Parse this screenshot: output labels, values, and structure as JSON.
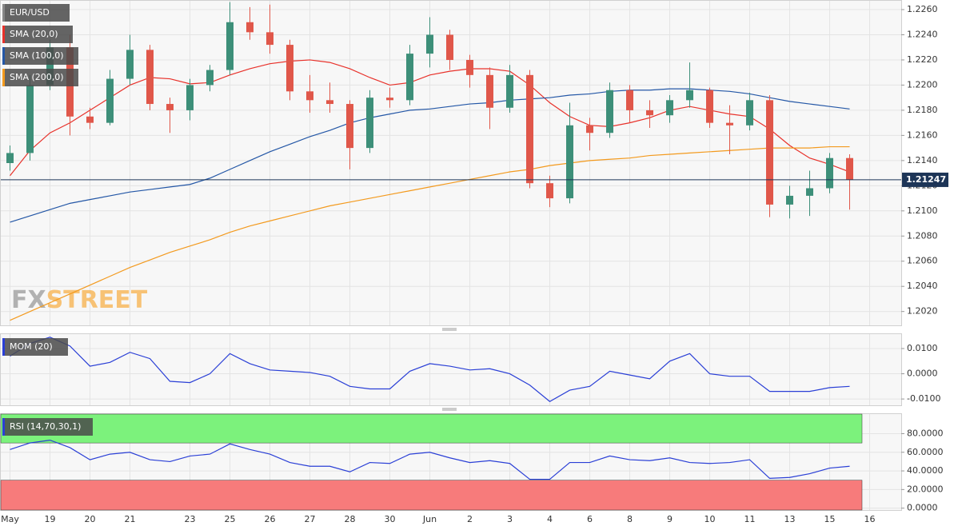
{
  "chart_data": [
    {
      "type": "candlestick",
      "symbol": "EUR/USD",
      "up_color": "#3d8f79",
      "down_color": "#e0574a",
      "grid": true,
      "last_price": 1.21247,
      "last_price_color": "#1d3557",
      "categories": [
        "May",
        null,
        "19",
        null,
        "20",
        null,
        "21",
        null,
        null,
        "23",
        null,
        "25",
        null,
        "26",
        null,
        "27",
        null,
        "28",
        null,
        "30",
        null,
        "Jun",
        null,
        "2",
        null,
        "3",
        null,
        "4",
        null,
        "6",
        null,
        "8",
        null,
        "9",
        null,
        "10",
        null,
        "11",
        null,
        "13",
        null,
        "15",
        null,
        "16"
      ],
      "open": [
        1.2138,
        1.2146,
        1.22,
        1.223,
        1.2175,
        1.217,
        1.2205,
        1.2228,
        1.2185,
        1.218,
        1.22,
        1.2212,
        1.225,
        1.2242,
        1.2232,
        1.2195,
        1.2188,
        1.2185,
        1.215,
        1.219,
        1.2188,
        1.2225,
        1.224,
        1.222,
        1.2208,
        1.2182,
        1.2208,
        1.2122,
        1.211,
        1.2168,
        1.2162,
        1.2196,
        1.218,
        1.2176,
        1.2188,
        1.2196,
        1.217,
        1.2168,
        1.2188,
        1.2105,
        1.2112,
        1.2118,
        1.2142,
        null
      ],
      "high": [
        1.2152,
        1.2208,
        1.2236,
        1.224,
        1.2182,
        1.2212,
        1.224,
        1.2232,
        1.219,
        1.2205,
        1.2216,
        1.2266,
        1.2262,
        1.2264,
        1.2236,
        1.2208,
        1.2202,
        1.2188,
        1.2196,
        1.2198,
        1.2232,
        1.2254,
        1.2244,
        1.2224,
        1.2214,
        1.2216,
        1.2212,
        1.2128,
        1.2186,
        1.2174,
        1.2202,
        1.22,
        1.2188,
        1.2192,
        1.2218,
        1.2198,
        1.2184,
        1.2194,
        1.2192,
        1.212,
        1.2132,
        1.2146,
        1.2145,
        null
      ],
      "low": [
        1.2132,
        1.214,
        1.2196,
        1.216,
        1.2165,
        1.2168,
        1.22,
        1.218,
        1.2162,
        1.2172,
        1.2195,
        1.2208,
        1.2236,
        1.2225,
        1.2188,
        1.2178,
        1.2178,
        1.2133,
        1.2146,
        1.2182,
        1.2184,
        1.2214,
        1.2212,
        1.2198,
        1.2165,
        1.2178,
        1.2118,
        1.2103,
        1.2106,
        1.2148,
        1.2158,
        1.217,
        1.2166,
        1.217,
        1.2182,
        1.2166,
        1.2145,
        1.2164,
        1.2095,
        1.2094,
        1.2096,
        1.2114,
        1.2101,
        null
      ],
      "close": [
        1.2146,
        1.22,
        1.223,
        1.2175,
        1.217,
        1.2205,
        1.2228,
        1.2185,
        1.218,
        1.22,
        1.2212,
        1.225,
        1.2242,
        1.2232,
        1.2195,
        1.2188,
        1.2185,
        1.215,
        1.219,
        1.2188,
        1.2225,
        1.224,
        1.222,
        1.2208,
        1.2182,
        1.2208,
        1.2122,
        1.211,
        1.2168,
        1.2162,
        1.2196,
        1.218,
        1.2176,
        1.2188,
        1.2196,
        1.217,
        1.2168,
        1.2188,
        1.2105,
        1.2112,
        1.2118,
        1.2142,
        1.21247,
        null
      ],
      "series": [
        {
          "name": "SMA (20,0)",
          "color": "#e8312a",
          "values": [
            1.2128,
            1.2148,
            1.2162,
            1.217,
            1.218,
            1.219,
            1.22,
            1.2206,
            1.2205,
            1.2201,
            1.2202,
            1.2208,
            1.2213,
            1.2217,
            1.2219,
            1.222,
            1.2218,
            1.2213,
            1.2206,
            1.22,
            1.2202,
            1.2208,
            1.2211,
            1.2213,
            1.2213,
            1.2211,
            1.22,
            1.2186,
            1.2175,
            1.2168,
            1.2167,
            1.217,
            1.2174,
            1.218,
            1.2183,
            1.218,
            1.2177,
            1.2175,
            1.2165,
            1.2152,
            1.2142,
            1.2137,
            1.2131,
            null
          ]
        },
        {
          "name": "SMA (100,0)",
          "color": "#2457a6",
          "values": [
            1.2091,
            1.2096,
            1.2101,
            1.2106,
            1.2109,
            1.2112,
            1.2115,
            1.2117,
            1.2119,
            1.2121,
            1.2126,
            1.2133,
            1.214,
            1.2147,
            1.2153,
            1.2159,
            1.2164,
            1.217,
            1.2174,
            1.2177,
            1.218,
            1.2181,
            1.2183,
            1.2185,
            1.2186,
            1.2188,
            1.2189,
            1.219,
            1.2192,
            1.2193,
            1.2195,
            1.2196,
            1.2196,
            1.2197,
            1.2197,
            1.2196,
            1.2195,
            1.2193,
            1.219,
            1.2187,
            1.2185,
            1.2183,
            1.2181,
            null
          ]
        },
        {
          "name": "SMA (200,0)",
          "color": "#f39a1e",
          "values": [
            1.2013,
            1.202,
            1.2027,
            1.2034,
            1.2041,
            1.2048,
            1.2055,
            1.2061,
            1.2067,
            1.2072,
            1.2077,
            1.2083,
            1.2088,
            1.2092,
            1.2096,
            1.21,
            1.2104,
            1.2107,
            1.211,
            1.2113,
            1.2116,
            1.2119,
            1.2122,
            1.2125,
            1.2128,
            1.2131,
            1.2133,
            1.2136,
            1.2138,
            1.214,
            1.2141,
            1.2142,
            1.2144,
            1.2145,
            1.2146,
            1.2147,
            1.2148,
            1.2149,
            1.215,
            1.215,
            1.215,
            1.2151,
            1.2151,
            null
          ]
        }
      ],
      "ylim": [
        1.2009,
        1.2267
      ],
      "yticks": [
        {
          "value": 1.202,
          "label": "1.2020"
        },
        {
          "value": 1.204,
          "label": "1.2040"
        },
        {
          "value": 1.206,
          "label": "1.2060"
        },
        {
          "value": 1.208,
          "label": "1.2080"
        },
        {
          "value": 1.21,
          "label": "1.2100"
        },
        {
          "value": 1.212,
          "label": "1.2120"
        },
        {
          "value": 1.214,
          "label": "1.2140"
        },
        {
          "value": 1.216,
          "label": "1.2160"
        },
        {
          "value": 1.218,
          "label": "1.2180"
        },
        {
          "value": 1.22,
          "label": "1.2200"
        },
        {
          "value": 1.222,
          "label": "1.2220"
        },
        {
          "value": 1.224,
          "label": "1.2240"
        },
        {
          "value": 1.226,
          "label": "1.2260"
        }
      ],
      "watermark": [
        "FX",
        "STREET"
      ]
    },
    {
      "type": "line",
      "label": "MOM (20)",
      "color": "#2a3fd6",
      "grid": true,
      "values": [
        0.007,
        0.012,
        0.0145,
        0.011,
        0.003,
        0.0045,
        0.0085,
        0.006,
        -0.003,
        -0.0035,
        0.0,
        0.008,
        0.004,
        0.0015,
        0.001,
        0.0005,
        -0.001,
        -0.005,
        -0.006,
        -0.006,
        0.001,
        0.004,
        0.003,
        0.0015,
        0.002,
        0.0,
        -0.0045,
        -0.011,
        -0.0065,
        -0.005,
        0.001,
        -0.0005,
        -0.002,
        0.005,
        0.008,
        0.0,
        -0.001,
        -0.001,
        -0.007,
        -0.007,
        -0.007,
        -0.0055,
        -0.005,
        null
      ],
      "ylim": [
        -0.0125,
        0.0157
      ],
      "yticks": [
        {
          "value": -0.01,
          "label": "-0.0100"
        },
        {
          "value": 0,
          "label": "0.0000"
        },
        {
          "value": 0.01,
          "label": "0.0100"
        }
      ]
    },
    {
      "type": "line",
      "label": "RSI (14,70,30,1)",
      "color": "#2a3fd6",
      "grid": true,
      "upper": 70,
      "lower": 30,
      "upper_color": "#7cf27c",
      "lower_color": "#f77b7b",
      "values": [
        63,
        70,
        73,
        65,
        52,
        58,
        60,
        52,
        50,
        56,
        58,
        69,
        63,
        58,
        49,
        45,
        45,
        39,
        49,
        48,
        58,
        60,
        54,
        49,
        51,
        48,
        31,
        31,
        49,
        49,
        56,
        52,
        51,
        54,
        49,
        48,
        49,
        52,
        32,
        33,
        37,
        43,
        45,
        null
      ],
      "ylim": [
        -2,
        101
      ],
      "yticks": [
        {
          "value": 0,
          "label": "0.0000"
        },
        {
          "value": 20,
          "label": "20.0000"
        },
        {
          "value": 40,
          "label": "40.0000"
        },
        {
          "value": 60,
          "label": "60.0000"
        },
        {
          "value": 80,
          "label": "80.0000"
        }
      ]
    }
  ]
}
